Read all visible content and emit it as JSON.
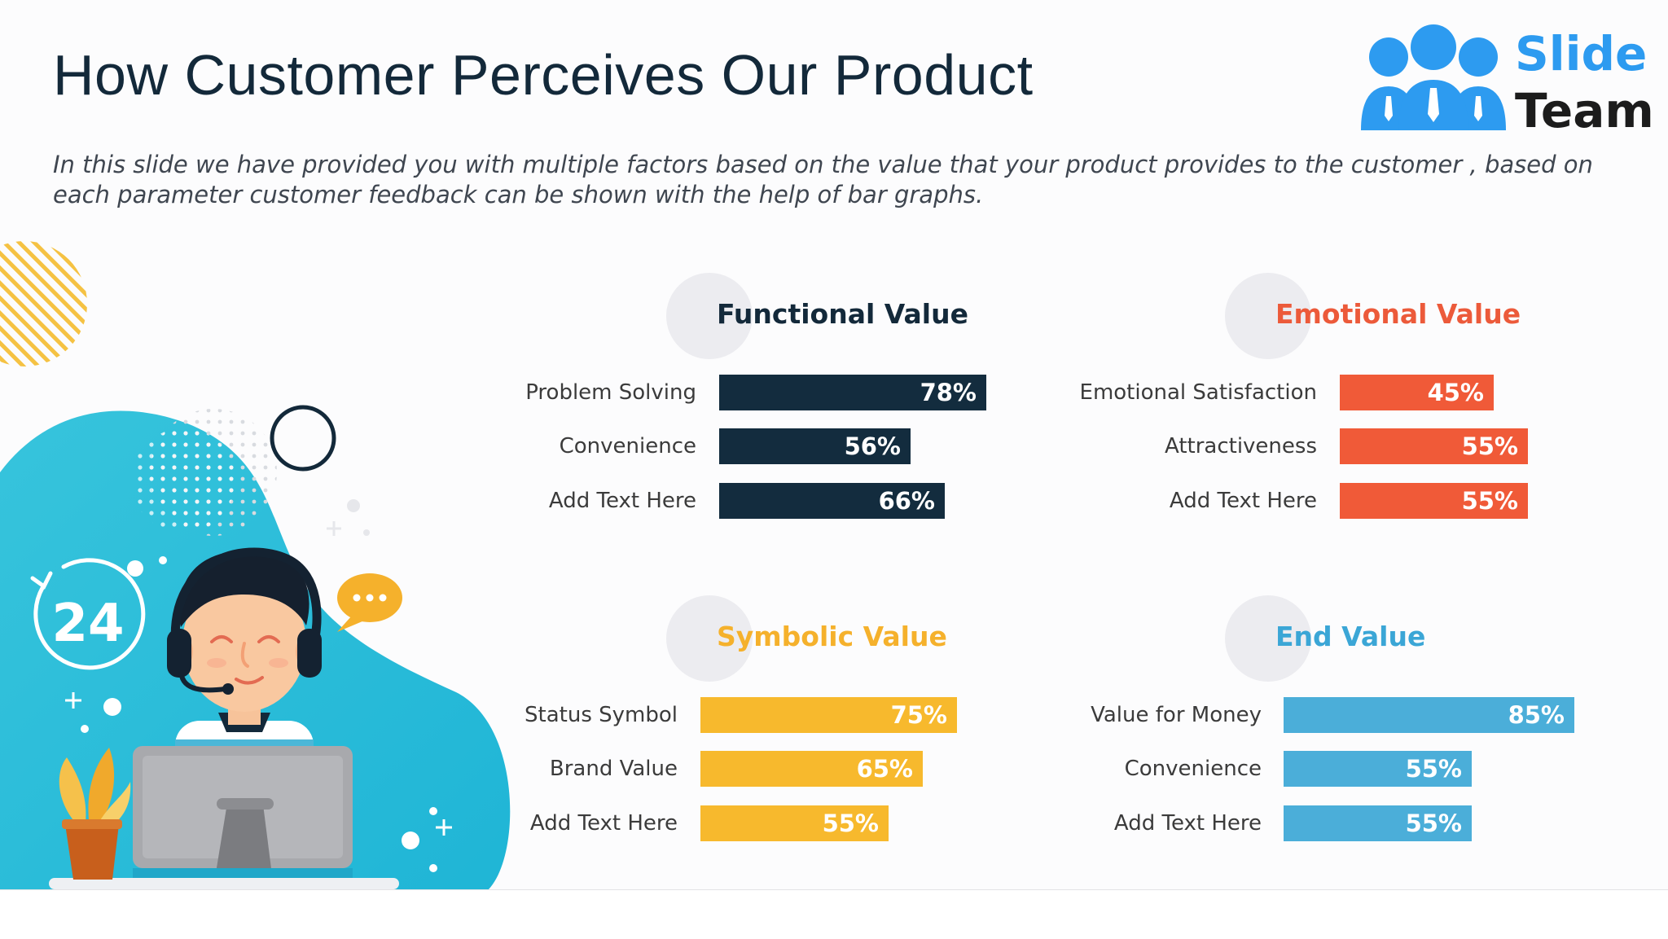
{
  "page": {
    "title": "How Customer Perceives Our Product",
    "subtitle": "In this slide we have provided you with multiple factors based on the value that your product provides to the customer , based on each parameter customer feedback can be shown with the help of bar graphs."
  },
  "logo": {
    "line1": "Slide",
    "line2": "Team"
  },
  "illustration": {
    "badge_text": "24",
    "chat_icon": "speech-bubble-icon",
    "clock_icon": "clock-24-icon"
  },
  "colors": {
    "functional": "#132c3e",
    "emotional": "#f05a38",
    "symbolic": "#f7b92d",
    "end": "#4baed9",
    "title_text": "#13293a"
  },
  "chart_data": [
    {
      "type": "bar",
      "orientation": "horizontal",
      "title": "Functional Value",
      "categories": [
        "Problem Solving",
        "Convenience",
        "Add Text Here"
      ],
      "values": [
        78,
        56,
        66
      ],
      "value_labels": [
        "78%",
        "56%",
        "66%"
      ],
      "unit": "%",
      "xlim": [
        0,
        100
      ],
      "color": "#132c3e"
    },
    {
      "type": "bar",
      "orientation": "horizontal",
      "title": "Emotional Value",
      "categories": [
        "Emotional Satisfaction",
        "Attractiveness",
        "Add Text Here"
      ],
      "values": [
        45,
        55,
        55
      ],
      "value_labels": [
        "45%",
        "55%",
        "55%"
      ],
      "unit": "%",
      "xlim": [
        0,
        100
      ],
      "color": "#f05a38"
    },
    {
      "type": "bar",
      "orientation": "horizontal",
      "title": "Symbolic Value",
      "categories": [
        "Status Symbol",
        "Brand Value",
        "Add Text Here"
      ],
      "values": [
        75,
        65,
        55
      ],
      "value_labels": [
        "75%",
        "65%",
        "55%"
      ],
      "unit": "%",
      "xlim": [
        0,
        100
      ],
      "color": "#f7b92d"
    },
    {
      "type": "bar",
      "orientation": "horizontal",
      "title": "End Value",
      "categories": [
        "Value for Money",
        "Convenience",
        "Add Text Here"
      ],
      "values": [
        85,
        55,
        55
      ],
      "value_labels": [
        "85%",
        "55%",
        "55%"
      ],
      "unit": "%",
      "xlim": [
        0,
        100
      ],
      "color": "#4baed9"
    }
  ]
}
